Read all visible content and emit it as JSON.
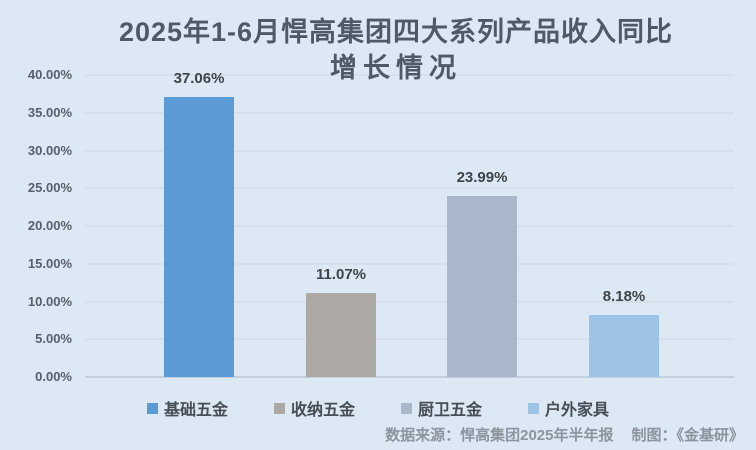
{
  "chart_data": {
    "type": "bar",
    "title": "2025年1-6月悍高集团四大系列产品收入同比增长情况",
    "title_lines": [
      "2025年1-6月悍高集团四大系列产品收入同比",
      "增长情况"
    ],
    "categories": [
      "基础五金",
      "收纳五金",
      "厨卫五金",
      "户外家具"
    ],
    "values": [
      37.06,
      11.07,
      23.99,
      8.18
    ],
    "value_labels": [
      "37.06%",
      "11.07%",
      "23.99%",
      "8.18%"
    ],
    "bar_colors": [
      "#5b9bd5",
      "#aca8a4",
      "#aab7ca",
      "#9dc3e6"
    ],
    "xlabel": "",
    "ylabel": "",
    "ylim": [
      0,
      40
    ],
    "yticks": [
      0,
      5,
      10,
      15,
      20,
      25,
      30,
      35,
      40
    ],
    "ytick_labels": [
      "0.00%",
      "5.00%",
      "10.00%",
      "15.00%",
      "20.00%",
      "25.00%",
      "30.00%",
      "35.00%",
      "40.00%"
    ],
    "grid": true,
    "legend_position": "bottom"
  },
  "footer": {
    "source": "数据来源：悍高集团2025年半年报",
    "credit": "制图：《金基研》"
  },
  "colors": {
    "background": "#dce8f4",
    "title_text": "#4e5a66",
    "gridline": "#d6e0ea",
    "axis_line": "#c4cfdc",
    "value_label_text": "#3d4349",
    "footer_text": "#8c949e"
  }
}
